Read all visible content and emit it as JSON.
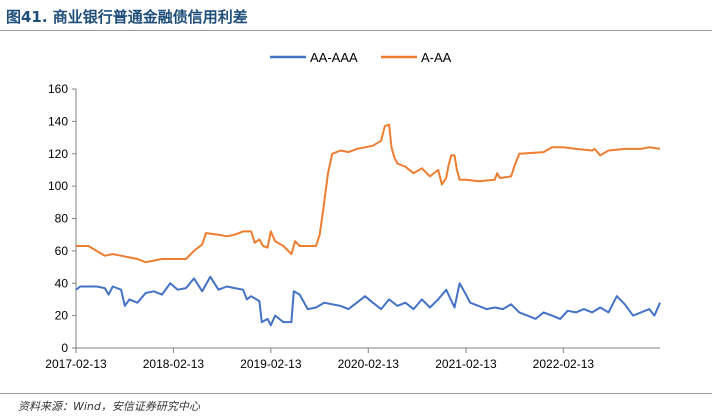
{
  "header": {
    "title": "图41. 商业银行普通金融债信用利差"
  },
  "footer": {
    "source": "资料来源：Wind，安信证券研究中心"
  },
  "chart_data": {
    "type": "line",
    "title": "",
    "xlabel": "",
    "ylabel": "",
    "ylim": [
      0,
      160
    ],
    "yticks": [
      0,
      20,
      40,
      60,
      80,
      100,
      120,
      140,
      160
    ],
    "xlim": [
      "2017-02-13",
      "2023-02-10"
    ],
    "xticks": [
      "2017-02-13",
      "2018-02-13",
      "2019-02-13",
      "2020-02-13",
      "2021-02-13",
      "2022-02-13"
    ],
    "grid": false,
    "legend_position": "top",
    "series": [
      {
        "name": "AA-AAA",
        "color": "#4472c4",
        "points": [
          [
            "2017-02-13",
            36
          ],
          [
            "2017-03-01",
            38
          ],
          [
            "2017-05-01",
            38
          ],
          [
            "2017-06-01",
            37
          ],
          [
            "2017-06-15",
            33
          ],
          [
            "2017-07-01",
            38
          ],
          [
            "2017-08-01",
            36
          ],
          [
            "2017-08-15",
            26
          ],
          [
            "2017-09-01",
            30
          ],
          [
            "2017-10-01",
            28
          ],
          [
            "2017-11-01",
            34
          ],
          [
            "2017-12-01",
            35
          ],
          [
            "2018-01-01",
            33
          ],
          [
            "2018-02-01",
            40
          ],
          [
            "2018-03-01",
            36
          ],
          [
            "2018-04-01",
            37
          ],
          [
            "2018-05-01",
            43
          ],
          [
            "2018-06-01",
            35
          ],
          [
            "2018-07-01",
            44
          ],
          [
            "2018-08-01",
            36
          ],
          [
            "2018-09-01",
            38
          ],
          [
            "2018-10-01",
            37
          ],
          [
            "2018-11-01",
            36
          ],
          [
            "2018-11-15",
            30
          ],
          [
            "2018-12-01",
            32
          ],
          [
            "2019-01-01",
            29
          ],
          [
            "2019-01-10",
            16
          ],
          [
            "2019-02-01",
            18
          ],
          [
            "2019-02-13",
            14
          ],
          [
            "2019-03-01",
            20
          ],
          [
            "2019-04-01",
            16
          ],
          [
            "2019-05-01",
            16
          ],
          [
            "2019-05-10",
            35
          ],
          [
            "2019-06-01",
            33
          ],
          [
            "2019-07-01",
            24
          ],
          [
            "2019-08-01",
            25
          ],
          [
            "2019-09-01",
            28
          ],
          [
            "2019-10-01",
            27
          ],
          [
            "2019-11-01",
            26
          ],
          [
            "2019-12-01",
            24
          ],
          [
            "2020-01-01",
            28
          ],
          [
            "2020-02-01",
            32
          ],
          [
            "2020-03-01",
            28
          ],
          [
            "2020-04-01",
            24
          ],
          [
            "2020-05-01",
            30
          ],
          [
            "2020-06-01",
            26
          ],
          [
            "2020-07-01",
            28
          ],
          [
            "2020-08-01",
            24
          ],
          [
            "2020-09-01",
            30
          ],
          [
            "2020-10-01",
            25
          ],
          [
            "2020-11-01",
            30
          ],
          [
            "2020-12-01",
            36
          ],
          [
            "2021-01-01",
            25
          ],
          [
            "2021-01-20",
            40
          ],
          [
            "2021-02-13",
            33
          ],
          [
            "2021-03-01",
            28
          ],
          [
            "2021-04-01",
            26
          ],
          [
            "2021-05-01",
            24
          ],
          [
            "2021-06-01",
            25
          ],
          [
            "2021-07-01",
            24
          ],
          [
            "2021-08-01",
            27
          ],
          [
            "2021-09-01",
            22
          ],
          [
            "2021-10-01",
            20
          ],
          [
            "2021-11-01",
            18
          ],
          [
            "2021-12-01",
            22
          ],
          [
            "2022-01-01",
            20
          ],
          [
            "2022-02-01",
            18
          ],
          [
            "2022-03-01",
            23
          ],
          [
            "2022-04-01",
            22
          ],
          [
            "2022-05-01",
            24
          ],
          [
            "2022-06-01",
            22
          ],
          [
            "2022-07-01",
            25
          ],
          [
            "2022-08-01",
            22
          ],
          [
            "2022-09-01",
            32
          ],
          [
            "2022-10-01",
            27
          ],
          [
            "2022-11-01",
            20
          ],
          [
            "2022-12-01",
            22
          ],
          [
            "2023-01-01",
            24
          ],
          [
            "2023-01-20",
            20
          ],
          [
            "2023-02-10",
            28
          ]
        ]
      },
      {
        "name": "A-AA",
        "color": "#ed7d31",
        "points": [
          [
            "2017-02-13",
            63
          ],
          [
            "2017-04-01",
            63
          ],
          [
            "2017-05-01",
            60
          ],
          [
            "2017-06-01",
            57
          ],
          [
            "2017-07-01",
            58
          ],
          [
            "2017-08-01",
            57
          ],
          [
            "2017-09-01",
            56
          ],
          [
            "2017-10-01",
            55
          ],
          [
            "2017-11-01",
            53
          ],
          [
            "2017-12-01",
            54
          ],
          [
            "2018-01-01",
            55
          ],
          [
            "2018-04-01",
            55
          ],
          [
            "2018-05-01",
            60
          ],
          [
            "2018-06-01",
            64
          ],
          [
            "2018-06-15",
            71
          ],
          [
            "2018-08-01",
            70
          ],
          [
            "2018-09-01",
            69
          ],
          [
            "2018-10-01",
            70
          ],
          [
            "2018-11-01",
            72
          ],
          [
            "2018-12-01",
            72
          ],
          [
            "2018-12-15",
            65
          ],
          [
            "2019-01-01",
            67
          ],
          [
            "2019-01-15",
            63
          ],
          [
            "2019-02-01",
            62
          ],
          [
            "2019-02-13",
            72
          ],
          [
            "2019-03-01",
            66
          ],
          [
            "2019-04-01",
            63
          ],
          [
            "2019-05-01",
            58
          ],
          [
            "2019-05-15",
            66
          ],
          [
            "2019-06-01",
            63
          ],
          [
            "2019-08-01",
            63
          ],
          [
            "2019-08-15",
            70
          ],
          [
            "2019-09-01",
            90
          ],
          [
            "2019-09-15",
            108
          ],
          [
            "2019-10-01",
            120
          ],
          [
            "2019-11-01",
            122
          ],
          [
            "2019-12-01",
            121
          ],
          [
            "2020-01-01",
            123
          ],
          [
            "2020-02-01",
            124
          ],
          [
            "2020-03-01",
            125
          ],
          [
            "2020-04-01",
            128
          ],
          [
            "2020-04-15",
            137
          ],
          [
            "2020-05-01",
            138
          ],
          [
            "2020-05-10",
            124
          ],
          [
            "2020-05-20",
            118
          ],
          [
            "2020-06-01",
            114
          ],
          [
            "2020-07-01",
            112
          ],
          [
            "2020-08-01",
            108
          ],
          [
            "2020-09-01",
            111
          ],
          [
            "2020-10-01",
            106
          ],
          [
            "2020-11-01",
            110
          ],
          [
            "2020-11-15",
            101
          ],
          [
            "2020-12-01",
            105
          ],
          [
            "2020-12-10",
            113
          ],
          [
            "2020-12-20",
            119
          ],
          [
            "2021-01-01",
            119
          ],
          [
            "2021-01-10",
            110
          ],
          [
            "2021-01-20",
            104
          ],
          [
            "2021-02-13",
            104
          ],
          [
            "2021-04-01",
            103
          ],
          [
            "2021-06-01",
            104
          ],
          [
            "2021-06-10",
            108
          ],
          [
            "2021-06-20",
            105
          ],
          [
            "2021-08-01",
            106
          ],
          [
            "2021-08-15",
            113
          ],
          [
            "2021-09-01",
            120
          ],
          [
            "2021-12-01",
            121
          ],
          [
            "2022-01-01",
            124
          ],
          [
            "2022-02-13",
            124
          ],
          [
            "2022-04-01",
            123
          ],
          [
            "2022-06-01",
            122
          ],
          [
            "2022-06-10",
            123
          ],
          [
            "2022-07-01",
            119
          ],
          [
            "2022-08-01",
            122
          ],
          [
            "2022-10-01",
            123
          ],
          [
            "2022-12-01",
            123
          ],
          [
            "2023-01-01",
            124
          ],
          [
            "2023-02-10",
            123
          ]
        ]
      }
    ]
  }
}
